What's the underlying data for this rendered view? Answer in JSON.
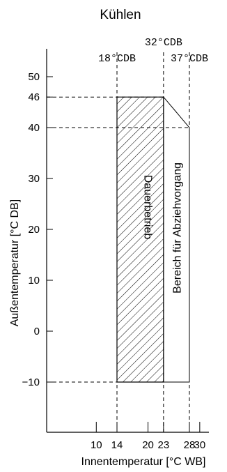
{
  "chart_data": {
    "type": "area",
    "title": "Kühlen",
    "xlabel": "Innentemperatur [°C WB]",
    "ylabel": "Außentemperatur [°C DB]",
    "x_ticks": [
      10,
      14,
      20,
      23,
      28,
      30
    ],
    "y_ticks": [
      50,
      46,
      40,
      30,
      20,
      10,
      0,
      -10
    ],
    "y_tick_labels": [
      "50",
      "46",
      "40",
      "30",
      "20",
      "10",
      "0",
      "−10"
    ],
    "xlim": [
      5,
      31.5
    ],
    "ylim": [
      -18,
      57
    ],
    "condition_markers": [
      {
        "label": "18°CDB",
        "x": 14
      },
      {
        "label": "32°CDB",
        "x": 23
      },
      {
        "label": "37°CDB",
        "x": 28
      }
    ],
    "regions": [
      {
        "name": "Dauerbetrieb",
        "fill": "hatched",
        "polygon": [
          [
            14,
            -10
          ],
          [
            14,
            46
          ],
          [
            23,
            46
          ],
          [
            23,
            -10
          ]
        ]
      },
      {
        "name": "Bereich für Abziehvorgang",
        "fill": "none",
        "polygon": [
          [
            23,
            -10
          ],
          [
            23,
            46
          ],
          [
            28,
            40
          ],
          [
            28,
            -10
          ]
        ]
      }
    ],
    "dashed_reference_lines": {
      "horizontal": [
        46,
        40,
        -10
      ],
      "vertical": [
        14,
        23,
        28
      ]
    },
    "grid": false
  }
}
